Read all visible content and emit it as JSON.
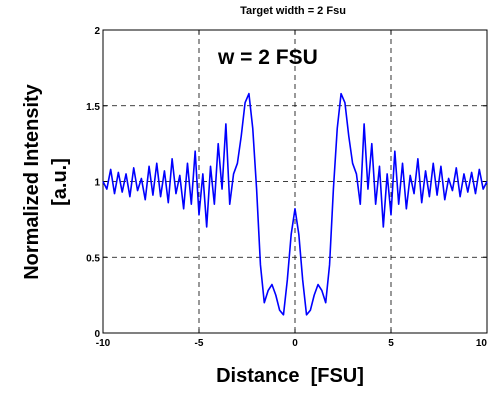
{
  "chart_data": {
    "type": "line",
    "title": "Target width = 2 Fsu",
    "annotation": "w = 2 FSU",
    "xlabel": "Distance  [FSU]",
    "ylabel_line1": "Normalized Intensity",
    "ylabel_line2": "[a.u.]",
    "xlim": [
      -10,
      10
    ],
    "ylim": [
      0,
      2
    ],
    "grid": true,
    "x_ticks": [
      {
        "value": -10,
        "label": "-10"
      },
      {
        "value": -5,
        "label": "-5"
      },
      {
        "value": 0,
        "label": "0"
      },
      {
        "value": 5,
        "label": "5"
      },
      {
        "value": 10,
        "label": "10"
      }
    ],
    "y_ticks": [
      {
        "value": 0,
        "label": "0"
      },
      {
        "value": 0.5,
        "label": "0.5"
      },
      {
        "value": 1,
        "label": "1"
      },
      {
        "value": 1.5,
        "label": "1.5"
      },
      {
        "value": 2,
        "label": "2"
      }
    ],
    "series": [
      {
        "color": "#0000ff",
        "x": [
          -10.0,
          -9.8,
          -9.6,
          -9.4,
          -9.2,
          -9.0,
          -8.8,
          -8.6,
          -8.4,
          -8.2,
          -8.0,
          -7.8,
          -7.6,
          -7.4,
          -7.2,
          -7.0,
          -6.8,
          -6.6,
          -6.4,
          -6.2,
          -6.0,
          -5.8,
          -5.6,
          -5.4,
          -5.2,
          -5.0,
          -4.8,
          -4.6,
          -4.4,
          -4.2,
          -4.0,
          -3.8,
          -3.6,
          -3.4,
          -3.2,
          -3.0,
          -2.8,
          -2.6,
          -2.4,
          -2.2,
          -2.0,
          -1.8,
          -1.6,
          -1.4,
          -1.2,
          -1.0,
          -0.8,
          -0.6,
          -0.4,
          -0.2,
          0.0,
          0.2,
          0.4,
          0.6,
          0.8,
          1.0,
          1.2,
          1.4,
          1.6,
          1.8,
          2.0,
          2.2,
          2.4,
          2.6,
          2.8,
          3.0,
          3.2,
          3.4,
          3.6,
          3.8,
          4.0,
          4.2,
          4.4,
          4.6,
          4.8,
          5.0,
          5.2,
          5.4,
          5.6,
          5.8,
          6.0,
          6.2,
          6.4,
          6.6,
          6.8,
          7.0,
          7.2,
          7.4,
          7.6,
          7.8,
          8.0,
          8.2,
          8.4,
          8.6,
          8.8,
          9.0,
          9.2,
          9.4,
          9.6,
          9.8,
          10.0
        ],
        "values": [
          1.0,
          0.95,
          1.08,
          0.92,
          1.06,
          0.93,
          1.05,
          0.9,
          1.09,
          0.94,
          1.02,
          0.88,
          1.1,
          0.91,
          1.12,
          0.9,
          1.07,
          0.86,
          1.15,
          0.92,
          1.04,
          0.82,
          1.12,
          0.85,
          1.2,
          0.78,
          1.05,
          0.7,
          1.1,
          0.85,
          1.25,
          0.95,
          1.38,
          0.85,
          1.05,
          1.12,
          1.3,
          1.52,
          1.58,
          1.35,
          0.95,
          0.45,
          0.2,
          0.28,
          0.32,
          0.25,
          0.15,
          0.12,
          0.35,
          0.65,
          0.82,
          0.65,
          0.35,
          0.12,
          0.15,
          0.25,
          0.32,
          0.28,
          0.2,
          0.45,
          0.95,
          1.35,
          1.58,
          1.52,
          1.3,
          1.12,
          1.05,
          0.85,
          1.38,
          0.95,
          1.25,
          0.85,
          1.1,
          0.7,
          1.05,
          0.78,
          1.2,
          0.85,
          1.12,
          0.82,
          1.04,
          0.92,
          1.15,
          0.86,
          1.07,
          0.9,
          1.12,
          0.91,
          1.1,
          0.88,
          1.02,
          0.94,
          1.09,
          0.9,
          1.05,
          0.93,
          1.06,
          0.92,
          1.08,
          0.95,
          1.0
        ]
      }
    ]
  }
}
